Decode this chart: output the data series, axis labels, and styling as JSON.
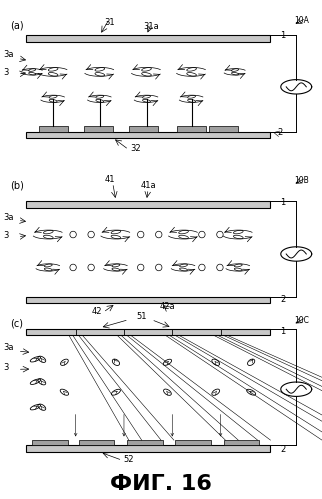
{
  "title": "ФИГ. 16",
  "title_fontsize": 16,
  "title_bold": true,
  "background_color": "#ffffff",
  "panel_labels": [
    "(a)",
    "(b)",
    "(c)"
  ],
  "device_labels": [
    "10A",
    "10B",
    "10C"
  ],
  "fig_width": 3.22,
  "fig_height": 4.99,
  "dpi": 100
}
